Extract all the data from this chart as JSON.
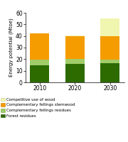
{
  "years": [
    "2010",
    "2020",
    "2030"
  ],
  "forest_residues": [
    15.0,
    16.0,
    16.5
  ],
  "comp_fellings_residues": [
    4.5,
    4.0,
    3.0
  ],
  "comp_fellings_stemwood": [
    22.5,
    19.5,
    20.0
  ],
  "competitive_use_of_wood": [
    0.5,
    1.0,
    15.5
  ],
  "colors": {
    "forest_residues": "#2d6a00",
    "comp_fellings_residues": "#a0cc6a",
    "comp_fellings_stemwood": "#f59c00",
    "competitive_use_of_wood": "#f0f5b0"
  },
  "ylabel": "Energy potential (Mtoe)",
  "ylim": [
    0,
    60
  ],
  "yticks": [
    0,
    10,
    20,
    30,
    40,
    50,
    60
  ],
  "bar_width": 0.55,
  "background_color": "#ffffff",
  "plot_bg_color": "#ffffff",
  "legend_labels": [
    "Competitive use of wood",
    "Complementary fellings stemwood",
    "Complementary fellings residues",
    "Forest residues"
  ]
}
